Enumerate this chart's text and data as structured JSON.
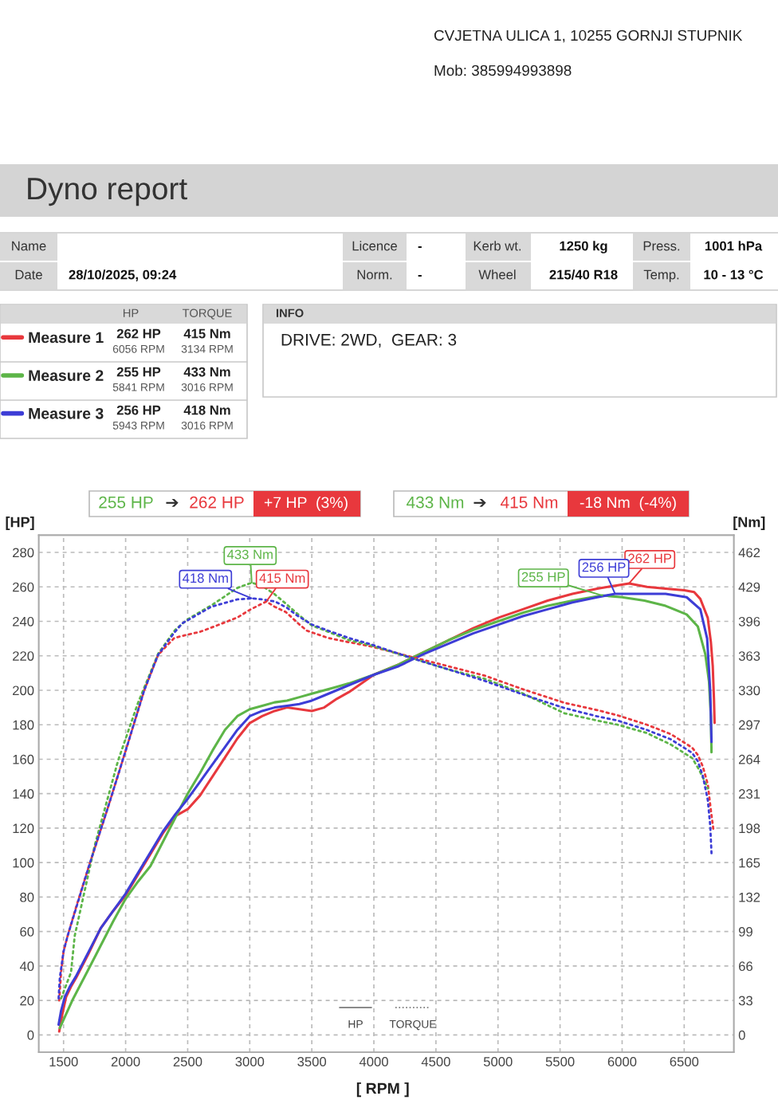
{
  "chart_data": {
    "type": "line",
    "title": "Dyno report",
    "xlabel": "[ RPM ]",
    "ylabel": "[HP]",
    "y2label": "[Nm]",
    "xlim": [
      1300,
      6900
    ],
    "xticks": [
      1500,
      2000,
      2500,
      3000,
      3500,
      4000,
      4500,
      5000,
      5500,
      6000,
      6500
    ],
    "ylim": [
      -10,
      290
    ],
    "yticks": [
      0,
      20,
      40,
      60,
      80,
      100,
      120,
      140,
      160,
      180,
      200,
      220,
      240,
      260,
      280
    ],
    "y2lim": [
      -16.5,
      478.5
    ],
    "y2ticks": [
      0,
      33,
      66,
      99,
      132,
      165,
      198,
      231,
      264,
      297,
      330,
      363,
      396,
      429,
      462
    ],
    "grid": true,
    "legend": "top left",
    "annotations": [
      "CVJETNA ULICA 1, 10255 GORNJI STUPNIK",
      "Mob: 385994993898",
      "Name",
      "Licence",
      "-",
      "Kerb wt.",
      "1250 kg",
      "Press.",
      "1001 hPa",
      "Date",
      "28/10/2025, 09:24",
      "Norm.",
      "-",
      "Wheel",
      "215/40 R18",
      "Temp.",
      "10 - 13 °C",
      "HP",
      "TORQUE",
      "262 HP",
      "6056 RPM",
      "415 Nm",
      "3134 RPM",
      "255 HP",
      "5841 RPM",
      "433 Nm",
      "3016 RPM",
      "256 HP",
      "5943 RPM",
      "418 Nm",
      "3016 RPM",
      "INFO",
      "DRIVE: 2WD,  GEAR: 3",
      "255 HP",
      "➔",
      "262 HP",
      "+7 HP  (3%)",
      "433 Nm",
      "➔",
      "415 Nm",
      "-18 Nm  (-4%)",
      "HP",
      "TORQUE"
    ],
    "series": [
      {
        "name": "Measure 1",
        "color": "#e8383d",
        "line_style": "solid",
        "x": [
          1465,
          1490,
          1520,
          1560,
          1600,
          1700,
          1800,
          1900,
          2000,
          2100,
          2200,
          2300,
          2400,
          2500,
          2600,
          2700,
          2800,
          2900,
          3000,
          3100,
          3200,
          3300,
          3400,
          3500,
          3600,
          3700,
          3800,
          4000,
          4200,
          4400,
          4600,
          4800,
          5000,
          5200,
          5400,
          5600,
          5800,
          6056,
          6200,
          6350,
          6500,
          6580,
          6630,
          6690,
          6715,
          6730,
          6740,
          6745
        ],
        "values": [
          2,
          12,
          22,
          28,
          33,
          47,
          62,
          72,
          81,
          93,
          105,
          117,
          127,
          131,
          139,
          150,
          161,
          172,
          181,
          185,
          188,
          190,
          189,
          188,
          190,
          195,
          199,
          209,
          215,
          222,
          229,
          236,
          242,
          247,
          252,
          256,
          259,
          262,
          260,
          259,
          258,
          257,
          253,
          242,
          228,
          214,
          195,
          181
        ],
        "value_labels": [
          null,
          null,
          null,
          null,
          null,
          null,
          null,
          null,
          null,
          null,
          null,
          null,
          null,
          null,
          null,
          null,
          null,
          null,
          null,
          null,
          null,
          null,
          null,
          null,
          null,
          null,
          null,
          null,
          null,
          null,
          null,
          null,
          null,
          null,
          null,
          null,
          null,
          "262 HP",
          null,
          null,
          null,
          null,
          null,
          null,
          null,
          null,
          null,
          null
        ]
      },
      {
        "name": "Measure 2",
        "color": "#5db548",
        "line_style": "solid",
        "x": [
          1470,
          1520,
          1577,
          1700,
          1800,
          1900,
          2000,
          2100,
          2200,
          2300,
          2400,
          2500,
          2600,
          2700,
          2800,
          2900,
          3000,
          3100,
          3200,
          3300,
          3400,
          3500,
          3600,
          3700,
          3800,
          4000,
          4200,
          4400,
          4600,
          4800,
          5000,
          5200,
          5400,
          5600,
          5841,
          6000,
          6180,
          6350,
          6520,
          6610,
          6670,
          6700,
          6715,
          6720
        ],
        "values": [
          4,
          12,
          21,
          38,
          52,
          66,
          79,
          89,
          98,
          112,
          126,
          140,
          152,
          165,
          177,
          185,
          189,
          191,
          193,
          194,
          196,
          198,
          200,
          202,
          204,
          209,
          215,
          222,
          229,
          235,
          240,
          245,
          249,
          252,
          255,
          254,
          252,
          249,
          244,
          237,
          221,
          205,
          185,
          164
        ],
        "value_labels": [
          null,
          null,
          null,
          null,
          null,
          null,
          null,
          null,
          null,
          null,
          null,
          null,
          null,
          null,
          null,
          null,
          null,
          null,
          null,
          null,
          null,
          null,
          null,
          null,
          null,
          null,
          null,
          null,
          null,
          null,
          null,
          null,
          null,
          null,
          "255 HP",
          null,
          null,
          null,
          null,
          null,
          null,
          null,
          null,
          null
        ]
      },
      {
        "name": "Measure 3",
        "color": "#3d3dd6",
        "line_style": "solid",
        "x": [
          1460,
          1480,
          1510,
          1550,
          1600,
          1700,
          1800,
          1900,
          2000,
          2100,
          2200,
          2300,
          2400,
          2500,
          2600,
          2700,
          2800,
          2900,
          3000,
          3100,
          3200,
          3300,
          3400,
          3500,
          3600,
          3700,
          3800,
          4000,
          4200,
          4400,
          4600,
          4800,
          5000,
          5200,
          5400,
          5600,
          5800,
          5943,
          6100,
          6350,
          6520,
          6630,
          6685,
          6710,
          6720
        ],
        "values": [
          6,
          14,
          22,
          28,
          34,
          48,
          62,
          72,
          82,
          94,
          106,
          118,
          128,
          137,
          147,
          157,
          167,
          177,
          185,
          188,
          190,
          191,
          192,
          194,
          197,
          200,
          203,
          209,
          214,
          221,
          227,
          233,
          238,
          243,
          247,
          251,
          254,
          256,
          256,
          256,
          254,
          247,
          230,
          199,
          170
        ],
        "value_labels": [
          null,
          null,
          null,
          null,
          null,
          null,
          null,
          null,
          null,
          null,
          null,
          null,
          null,
          null,
          null,
          null,
          null,
          null,
          null,
          null,
          null,
          null,
          null,
          null,
          null,
          null,
          null,
          null,
          null,
          null,
          null,
          null,
          null,
          null,
          null,
          null,
          null,
          "256 HP",
          null,
          null,
          null,
          null,
          null,
          null,
          null
        ]
      },
      {
        "color": "#e8383d",
        "line_style": "dotted",
        "axis": "y2",
        "x": [
          1465,
          1480,
          1500,
          1533,
          1600,
          1700,
          1850,
          2000,
          2150,
          2262,
          2391,
          2455,
          2600,
          2690,
          2800,
          2905,
          3000,
          3134,
          3200,
          3290,
          3400,
          3461,
          3633,
          3800,
          3976,
          4300,
          4600,
          4893,
          5200,
          5535,
          5800,
          5964,
          6200,
          6393,
          6565,
          6610,
          6650,
          6690,
          6715,
          6735
        ],
        "values": [
          33,
          60,
          80,
          95,
          122,
          160,
          215,
          272,
          330,
          364,
          380,
          382,
          386,
          390,
          395,
          400,
          407,
          415,
          410,
          405,
          393,
          387,
          380,
          376,
          372,
          362,
          353,
          344,
          331,
          318,
          311,
          306,
          297,
          288,
          275,
          268,
          257,
          240,
          215,
          197
        ],
        "value_labels": [
          null,
          null,
          null,
          null,
          null,
          null,
          null,
          null,
          null,
          null,
          null,
          null,
          null,
          null,
          null,
          null,
          null,
          "415 Nm",
          null,
          null,
          null,
          null,
          null,
          null,
          null,
          null,
          null,
          null,
          null,
          null,
          null,
          null,
          null,
          null,
          null,
          null,
          null,
          null,
          null,
          null
        ]
      },
      {
        "color": "#5db548",
        "line_style": "dotted",
        "axis": "y2",
        "x": [
          1480,
          1560,
          1590,
          1750,
          1940,
          2100,
          2262,
          2400,
          2500,
          2700,
          2900,
          3016,
          3100,
          3200,
          3300,
          3376,
          3500,
          3633,
          3800,
          3976,
          4300,
          4600,
          4893,
          5200,
          5535,
          5800,
          5964,
          6200,
          6393,
          6565,
          6620,
          6660,
          6690
        ],
        "values": [
          35,
          60,
          95,
          181,
          263,
          318,
          365,
          388,
          398,
          412,
          428,
          433,
          430,
          422,
          412,
          404,
          392,
          386,
          378,
          373,
          361,
          350,
          341,
          327,
          308,
          301,
          297,
          289,
          278,
          265,
          254,
          244,
          236
        ],
        "value_labels": [
          null,
          null,
          null,
          null,
          null,
          null,
          null,
          null,
          null,
          null,
          null,
          "433 Nm",
          null,
          null,
          null,
          null,
          null,
          null,
          null,
          null,
          null,
          null,
          null,
          null,
          null,
          null,
          null,
          null,
          null,
          null,
          null,
          null,
          null
        ]
      },
      {
        "color": "#3d3dd6",
        "line_style": "dotted",
        "axis": "y2",
        "x": [
          1460,
          1470,
          1500,
          1533,
          1700,
          1850,
          2000,
          2150,
          2262,
          2391,
          2455,
          2690,
          2900,
          3016,
          3100,
          3204,
          3300,
          3376,
          3500,
          3633,
          3800,
          3976,
          4300,
          4600,
          4893,
          5200,
          5535,
          5800,
          5964,
          6200,
          6393,
          6565,
          6610,
          6650,
          6690,
          6710,
          6720
        ],
        "values": [
          35,
          55,
          80,
          95,
          160,
          215,
          272,
          330,
          364,
          385,
          394,
          410,
          417,
          418,
          417,
          415,
          409,
          402,
          393,
          387,
          380,
          374,
          361,
          350,
          339,
          326,
          313,
          305,
          301,
          292,
          283,
          270,
          262,
          248,
          225,
          200,
          174
        ],
        "value_labels": [
          null,
          null,
          null,
          null,
          null,
          null,
          null,
          null,
          null,
          null,
          null,
          null,
          null,
          "418 Nm",
          null,
          null,
          null,
          null,
          null,
          null,
          null,
          null,
          null,
          null,
          null,
          null,
          null,
          null,
          null,
          null,
          null,
          null,
          null,
          null,
          null,
          null,
          null
        ]
      }
    ]
  }
}
